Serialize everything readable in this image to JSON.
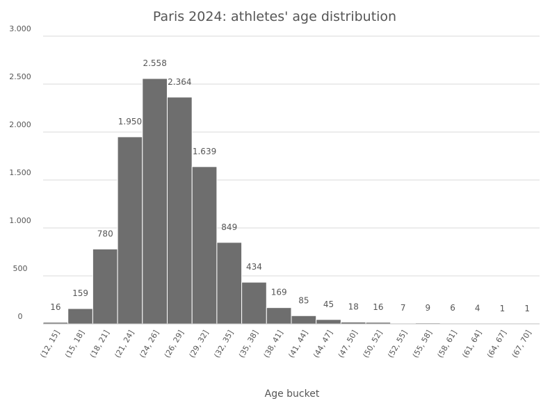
{
  "chart_data": {
    "type": "bar",
    "title": "Paris 2024: athletes' age distribution",
    "xlabel": "Age bucket",
    "ylabel": "",
    "ylim": [
      0,
      3000
    ],
    "yticks": [
      0,
      500,
      1000,
      1500,
      2000,
      2500,
      3000
    ],
    "ytick_labels": [
      "0",
      "500",
      "1.000",
      "1.500",
      "2.000",
      "2.500",
      "3.000"
    ],
    "categories": [
      "(12, 15]",
      "(15, 18]",
      "(18, 21]",
      "(21, 24]",
      "(24, 26]",
      "(26, 29]",
      "(29, 32]",
      "(32, 35]",
      "(35, 38]",
      "(38, 41]",
      "(41, 44]",
      "(44, 47]",
      "(47, 50]",
      "(50, 52]",
      "(52, 55]",
      "(55, 58]",
      "(58, 61]",
      "(61, 64]",
      "(64, 67]",
      "(67, 70]"
    ],
    "values": [
      16,
      159,
      780,
      1950,
      2558,
      2364,
      1639,
      849,
      434,
      169,
      85,
      45,
      18,
      16,
      7,
      9,
      6,
      4,
      1,
      1
    ],
    "value_labels": [
      "16",
      "159",
      "780",
      "1.950",
      "2.558",
      "2.364",
      "1.639",
      "849",
      "434",
      "169",
      "85",
      "45",
      "18",
      "16",
      "7",
      "9",
      "6",
      "4",
      "1",
      "1"
    ],
    "grid": true,
    "legend": "none",
    "colors": {
      "bar": "#6e6e6e",
      "bar_edge": "#ffffff",
      "grid": "#d9d9d9",
      "text": "#555555"
    }
  }
}
